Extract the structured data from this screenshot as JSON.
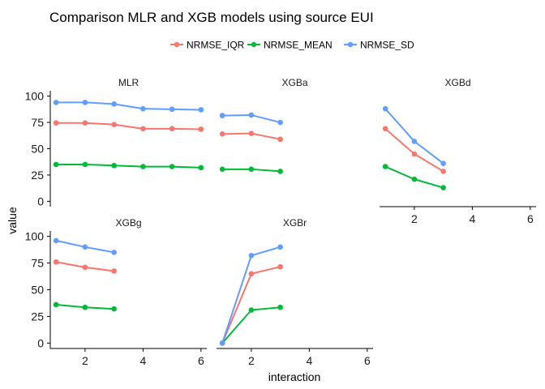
{
  "chart_data": {
    "type": "line",
    "title": "Comparison MLR and XGB models using source EUI",
    "xlabel": "interaction",
    "ylabel": "value",
    "xlim": [
      0.8,
      6.2
    ],
    "ylim": [
      -2,
      102
    ],
    "x_ticks": [
      2,
      4,
      6
    ],
    "y_ticks": [
      0,
      25,
      50,
      75,
      100
    ],
    "grid": false,
    "legend_position": "top",
    "legend": [
      "NRMSE_IQR",
      "NRMSE_MEAN",
      "NRMSE_SD"
    ],
    "colors": {
      "NRMSE_IQR": "#F8766D",
      "NRMSE_MEAN": "#00BA38",
      "NRMSE_SD": "#619CFF"
    },
    "panels": [
      {
        "name": "MLR",
        "x": [
          1,
          2,
          3,
          4,
          5,
          6
        ],
        "series": [
          {
            "name": "NRMSE_IQR",
            "values": [
              74.5,
              74.5,
              73,
              69,
              69,
              68.5
            ]
          },
          {
            "name": "NRMSE_MEAN",
            "values": [
              35,
              35,
              34,
              33,
              33,
              32
            ]
          },
          {
            "name": "NRMSE_SD",
            "values": [
              94,
              94,
              92.5,
              88,
              87.5,
              87
            ]
          }
        ]
      },
      {
        "name": "XGBa",
        "x": [
          1,
          2,
          3
        ],
        "series": [
          {
            "name": "NRMSE_IQR",
            "values": [
              64,
              64.5,
              59
            ]
          },
          {
            "name": "NRMSE_MEAN",
            "values": [
              30.5,
              30.5,
              28.5
            ]
          },
          {
            "name": "NRMSE_SD",
            "values": [
              81.5,
              82,
              75
            ]
          }
        ]
      },
      {
        "name": "XGBd",
        "x": [
          1,
          2,
          3
        ],
        "series": [
          {
            "name": "NRMSE_IQR",
            "values": [
              69,
              45,
              28.5
            ]
          },
          {
            "name": "NRMSE_MEAN",
            "values": [
              33,
              21,
              13
            ]
          },
          {
            "name": "NRMSE_SD",
            "values": [
              88,
              57,
              36
            ]
          }
        ]
      },
      {
        "name": "XGBg",
        "x": [
          1,
          2,
          3
        ],
        "series": [
          {
            "name": "NRMSE_IQR",
            "values": [
              76,
              71,
              67.5
            ]
          },
          {
            "name": "NRMSE_MEAN",
            "values": [
              36,
              33.5,
              32
            ]
          },
          {
            "name": "NRMSE_SD",
            "values": [
              96,
              90,
              85
            ]
          }
        ]
      },
      {
        "name": "XGBr",
        "x": [
          1,
          2,
          3
        ],
        "series": [
          {
            "name": "NRMSE_IQR",
            "values": [
              0,
              65,
              71.5
            ]
          },
          {
            "name": "NRMSE_MEAN",
            "values": [
              0,
              31,
              33.5
            ]
          },
          {
            "name": "NRMSE_SD",
            "values": [
              0,
              82,
              90
            ]
          }
        ]
      }
    ]
  }
}
